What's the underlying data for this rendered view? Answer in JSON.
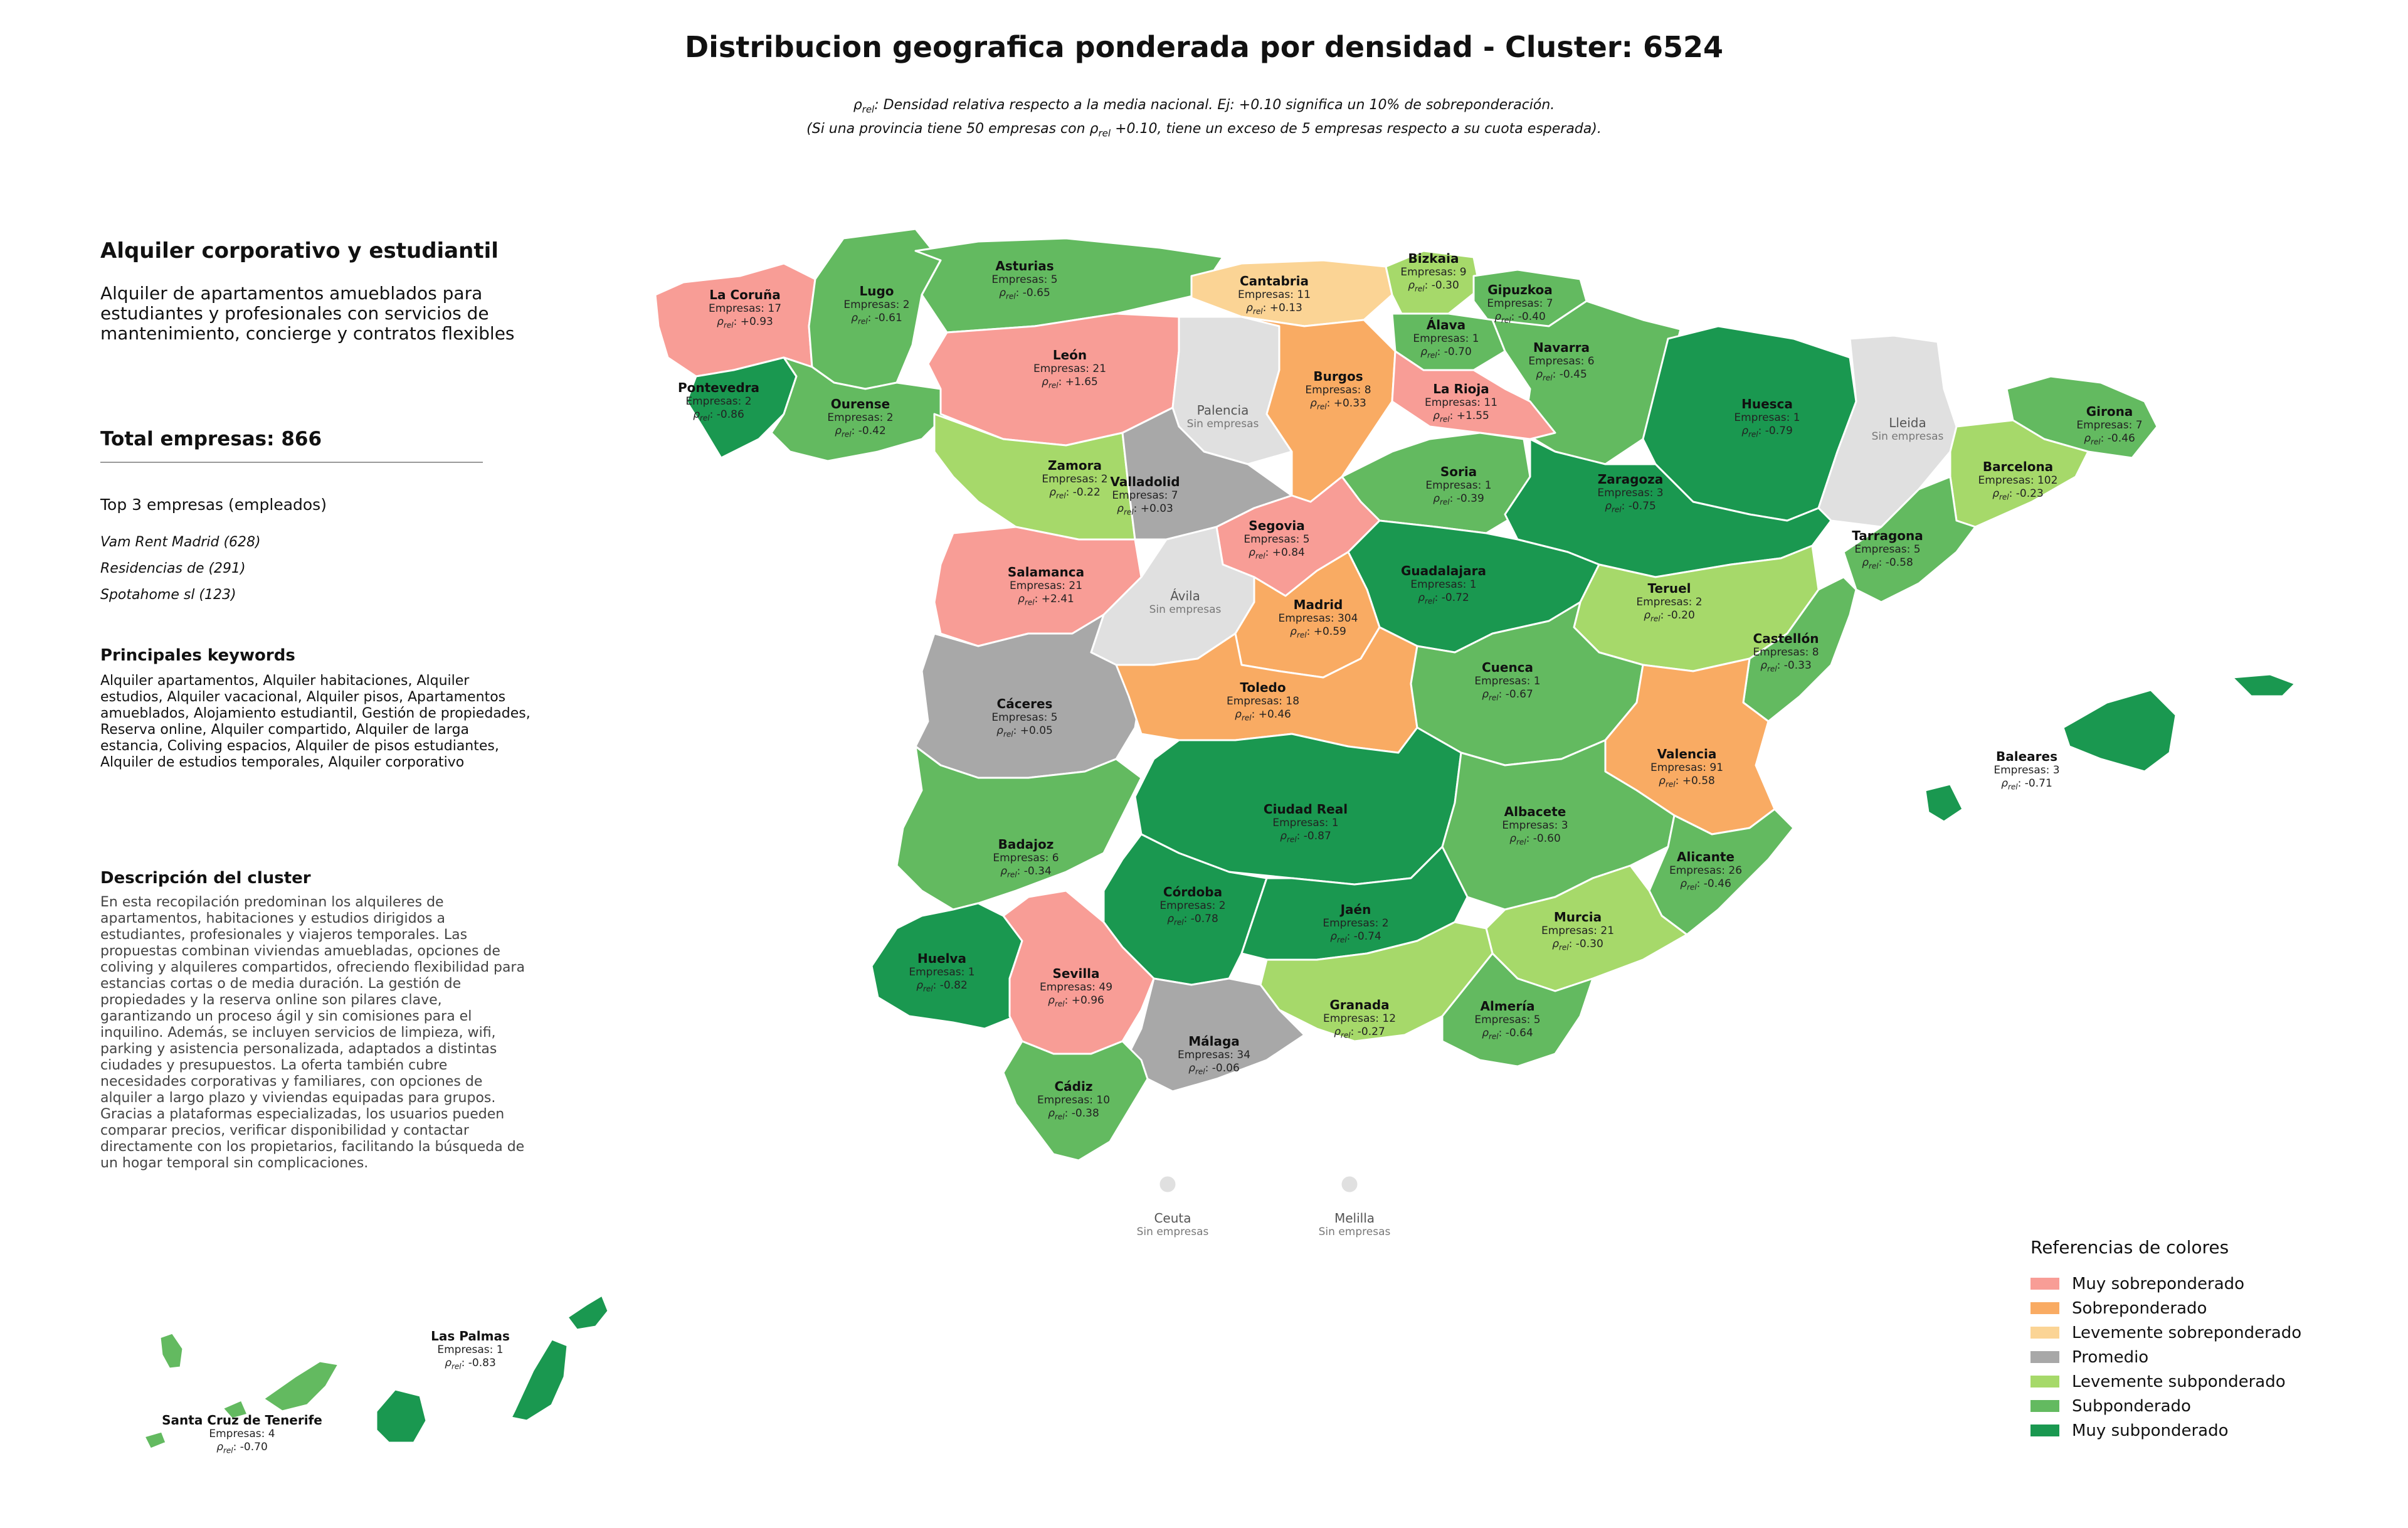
{
  "title": "Distribucion geografica ponderada por densidad - Cluster: 6524",
  "subtitle": {
    "line1": ": Densidad relativa respecto a la media nacional. Ej: +0.10 significa un 10% de sobreponderación.",
    "line2_a": "(Si una provincia tiene 50 empresas con ",
    "line2_b": " +0.10, tiene un exceso de 5 empresas respecto a su cuota esperada)."
  },
  "sidebar": {
    "cluster_title": "Alquiler corporativo y estudiantil",
    "cluster_desc": "Alquiler de apartamentos amueblados para estudiantes y profesionales con servicios de mantenimiento, concierge y contratos flexibles",
    "total_label": "Total empresas: 866",
    "top_heading": "Top 3 empresas (empleados)",
    "top_companies": [
      "Vam Rent Madrid (628)",
      "Residencias de (291)",
      "Spotahome sl (123)"
    ],
    "keywords_heading": "Principales keywords",
    "keywords": "Alquiler apartamentos, Alquiler habitaciones, Alquiler estudios, Alquiler vacacional, Alquiler pisos, Apartamentos amueblados, Alojamiento estudiantil, Gestión de propiedades, Reserva online, Alquiler compartido, Alquiler de larga estancia, Coliving espacios, Alquiler de pisos estudiantes, Alquiler de estudios temporales, Alquiler corporativo",
    "description_heading": "Descripción del cluster",
    "description": "En esta recopilación predominan los alquileres de apartamentos, habitaciones y estudios dirigidos a estudiantes, profesionales y viajeros temporales. Las propuestas combinan viviendas amuebladas, opciones de coliving y alquileres compartidos, ofreciendo flexibilidad para estancias cortas o de media duración. La gestión de propiedades y la reserva online son pilares clave, garantizando un proceso ágil y sin comisiones para el inquilino. Además, se incluyen servicios de limpieza, wifi, parking y asistencia personalizada, adaptados a distintas ciudades y presupuestos. La oferta también cubre necesidades corporativas y familiares, con opciones de alquiler a largo plazo y viviendas equipadas para grupos. Gracias a plataformas especializadas, los usuarios pueden comparar precios, verificar disponibilidad y contactar directamente con los propietarios, facilitando la búsqueda de un hogar temporal sin complicaciones."
  },
  "labels": {
    "companies_prefix": "Empresas: ",
    "rho_symbol": "ρ",
    "rho_sub": "rel",
    "no_companies": "Sin empresas"
  },
  "colors": {
    "Muy sobreponderado": "#f89d96",
    "Sobreponderado": "#f9ab63",
    "Levemente sobreponderado": "#fbd495",
    "Promedio": "#a8a8a8",
    "Levemente subponderado": "#a6d96a",
    "Subponderado": "#63ba60",
    "Muy subponderado": "#1a9850",
    "Sin empresas": "#e0e0e0"
  },
  "legend": {
    "title": "Referencias de colores",
    "items": [
      "Muy sobreponderado",
      "Sobreponderado",
      "Levemente sobreponderado",
      "Promedio",
      "Levemente subponderado",
      "Subponderado",
      "Muy subponderado"
    ]
  },
  "provinces": [
    {
      "name": "La Coruña",
      "empresas": 17,
      "rho": "+0.93",
      "category": "Muy sobreponderado"
    },
    {
      "name": "Lugo",
      "empresas": 2,
      "rho": "-0.61",
      "category": "Subponderado"
    },
    {
      "name": "Asturias",
      "empresas": 5,
      "rho": "-0.65",
      "category": "Subponderado"
    },
    {
      "name": "Cantabria",
      "empresas": 11,
      "rho": "+0.13",
      "category": "Levemente sobreponderado"
    },
    {
      "name": "Bizkaia",
      "empresas": 9,
      "rho": "-0.30",
      "category": "Levemente subponderado"
    },
    {
      "name": "Gipuzkoa",
      "empresas": 7,
      "rho": "-0.40",
      "category": "Subponderado"
    },
    {
      "name": "Álava",
      "empresas": 1,
      "rho": "-0.70",
      "category": "Subponderado"
    },
    {
      "name": "Navarra",
      "empresas": 6,
      "rho": "-0.45",
      "category": "Subponderado"
    },
    {
      "name": "Pontevedra",
      "empresas": 2,
      "rho": "-0.86",
      "category": "Muy subponderado"
    },
    {
      "name": "Ourense",
      "empresas": 2,
      "rho": "-0.42",
      "category": "Subponderado"
    },
    {
      "name": "León",
      "empresas": 21,
      "rho": "+1.65",
      "category": "Muy sobreponderado"
    },
    {
      "name": "Palencia",
      "empresas": null,
      "rho": null,
      "category": "Sin empresas"
    },
    {
      "name": "Burgos",
      "empresas": 8,
      "rho": "+0.33",
      "category": "Sobreponderado"
    },
    {
      "name": "La Rioja",
      "empresas": 11,
      "rho": "+1.55",
      "category": "Muy sobreponderado"
    },
    {
      "name": "Huesca",
      "empresas": 1,
      "rho": "-0.79",
      "category": "Muy subponderado"
    },
    {
      "name": "Lleida",
      "empresas": null,
      "rho": null,
      "category": "Sin empresas"
    },
    {
      "name": "Girona",
      "empresas": 7,
      "rho": "-0.46",
      "category": "Subponderado"
    },
    {
      "name": "Barcelona",
      "empresas": 102,
      "rho": "-0.23",
      "category": "Levemente subponderado"
    },
    {
      "name": "Zamora",
      "empresas": 2,
      "rho": "-0.22",
      "category": "Levemente subponderado"
    },
    {
      "name": "Valladolid",
      "empresas": 7,
      "rho": "+0.03",
      "category": "Promedio"
    },
    {
      "name": "Soria",
      "empresas": 1,
      "rho": "-0.39",
      "category": "Subponderado"
    },
    {
      "name": "Zaragoza",
      "empresas": 3,
      "rho": "-0.75",
      "category": "Muy subponderado"
    },
    {
      "name": "Tarragona",
      "empresas": 5,
      "rho": "-0.58",
      "category": "Subponderado"
    },
    {
      "name": "Salamanca",
      "empresas": 21,
      "rho": "+2.41",
      "category": "Muy sobreponderado"
    },
    {
      "name": "Segovia",
      "empresas": 5,
      "rho": "+0.84",
      "category": "Muy sobreponderado"
    },
    {
      "name": "Ávila",
      "empresas": null,
      "rho": null,
      "category": "Sin empresas"
    },
    {
      "name": "Guadalajara",
      "empresas": 1,
      "rho": "-0.72",
      "category": "Muy subponderado"
    },
    {
      "name": "Teruel",
      "empresas": 2,
      "rho": "-0.20",
      "category": "Levemente subponderado"
    },
    {
      "name": "Castellón",
      "empresas": 8,
      "rho": "-0.33",
      "category": "Subponderado"
    },
    {
      "name": "Madrid",
      "empresas": 304,
      "rho": "+0.59",
      "category": "Sobreponderado"
    },
    {
      "name": "Cáceres",
      "empresas": 5,
      "rho": "+0.05",
      "category": "Promedio"
    },
    {
      "name": "Toledo",
      "empresas": 18,
      "rho": "+0.46",
      "category": "Sobreponderado"
    },
    {
      "name": "Cuenca",
      "empresas": 1,
      "rho": "-0.67",
      "category": "Subponderado"
    },
    {
      "name": "Valencia",
      "empresas": 91,
      "rho": "+0.58",
      "category": "Sobreponderado"
    },
    {
      "name": "Baleares",
      "empresas": 3,
      "rho": "-0.71",
      "category": "Muy subponderado"
    },
    {
      "name": "Badajoz",
      "empresas": 6,
      "rho": "-0.34",
      "category": "Subponderado"
    },
    {
      "name": "Ciudad Real",
      "empresas": 1,
      "rho": "-0.87",
      "category": "Muy subponderado"
    },
    {
      "name": "Albacete",
      "empresas": 3,
      "rho": "-0.60",
      "category": "Subponderado"
    },
    {
      "name": "Alicante",
      "empresas": 26,
      "rho": "-0.46",
      "category": "Subponderado"
    },
    {
      "name": "Córdoba",
      "empresas": 2,
      "rho": "-0.78",
      "category": "Muy subponderado"
    },
    {
      "name": "Jaén",
      "empresas": 2,
      "rho": "-0.74",
      "category": "Muy subponderado"
    },
    {
      "name": "Murcia",
      "empresas": 21,
      "rho": "-0.30",
      "category": "Levemente subponderado"
    },
    {
      "name": "Huelva",
      "empresas": 1,
      "rho": "-0.82",
      "category": "Muy subponderado"
    },
    {
      "name": "Sevilla",
      "empresas": 49,
      "rho": "+0.96",
      "category": "Muy sobreponderado"
    },
    {
      "name": "Granada",
      "empresas": 12,
      "rho": "-0.27",
      "category": "Levemente subponderado"
    },
    {
      "name": "Almería",
      "empresas": 5,
      "rho": "-0.64",
      "category": "Subponderado"
    },
    {
      "name": "Málaga",
      "empresas": 34,
      "rho": "-0.06",
      "category": "Promedio"
    },
    {
      "name": "Cádiz",
      "empresas": 10,
      "rho": "-0.38",
      "category": "Subponderado"
    },
    {
      "name": "Ceuta",
      "empresas": null,
      "rho": null,
      "category": "Sin empresas"
    },
    {
      "name": "Melilla",
      "empresas": null,
      "rho": null,
      "category": "Sin empresas"
    },
    {
      "name": "Las Palmas",
      "empresas": 1,
      "rho": "-0.83",
      "category": "Muy subponderado"
    },
    {
      "name": "Santa Cruz de Tenerife",
      "empresas": 4,
      "rho": "-0.70",
      "category": "Subponderado"
    }
  ]
}
